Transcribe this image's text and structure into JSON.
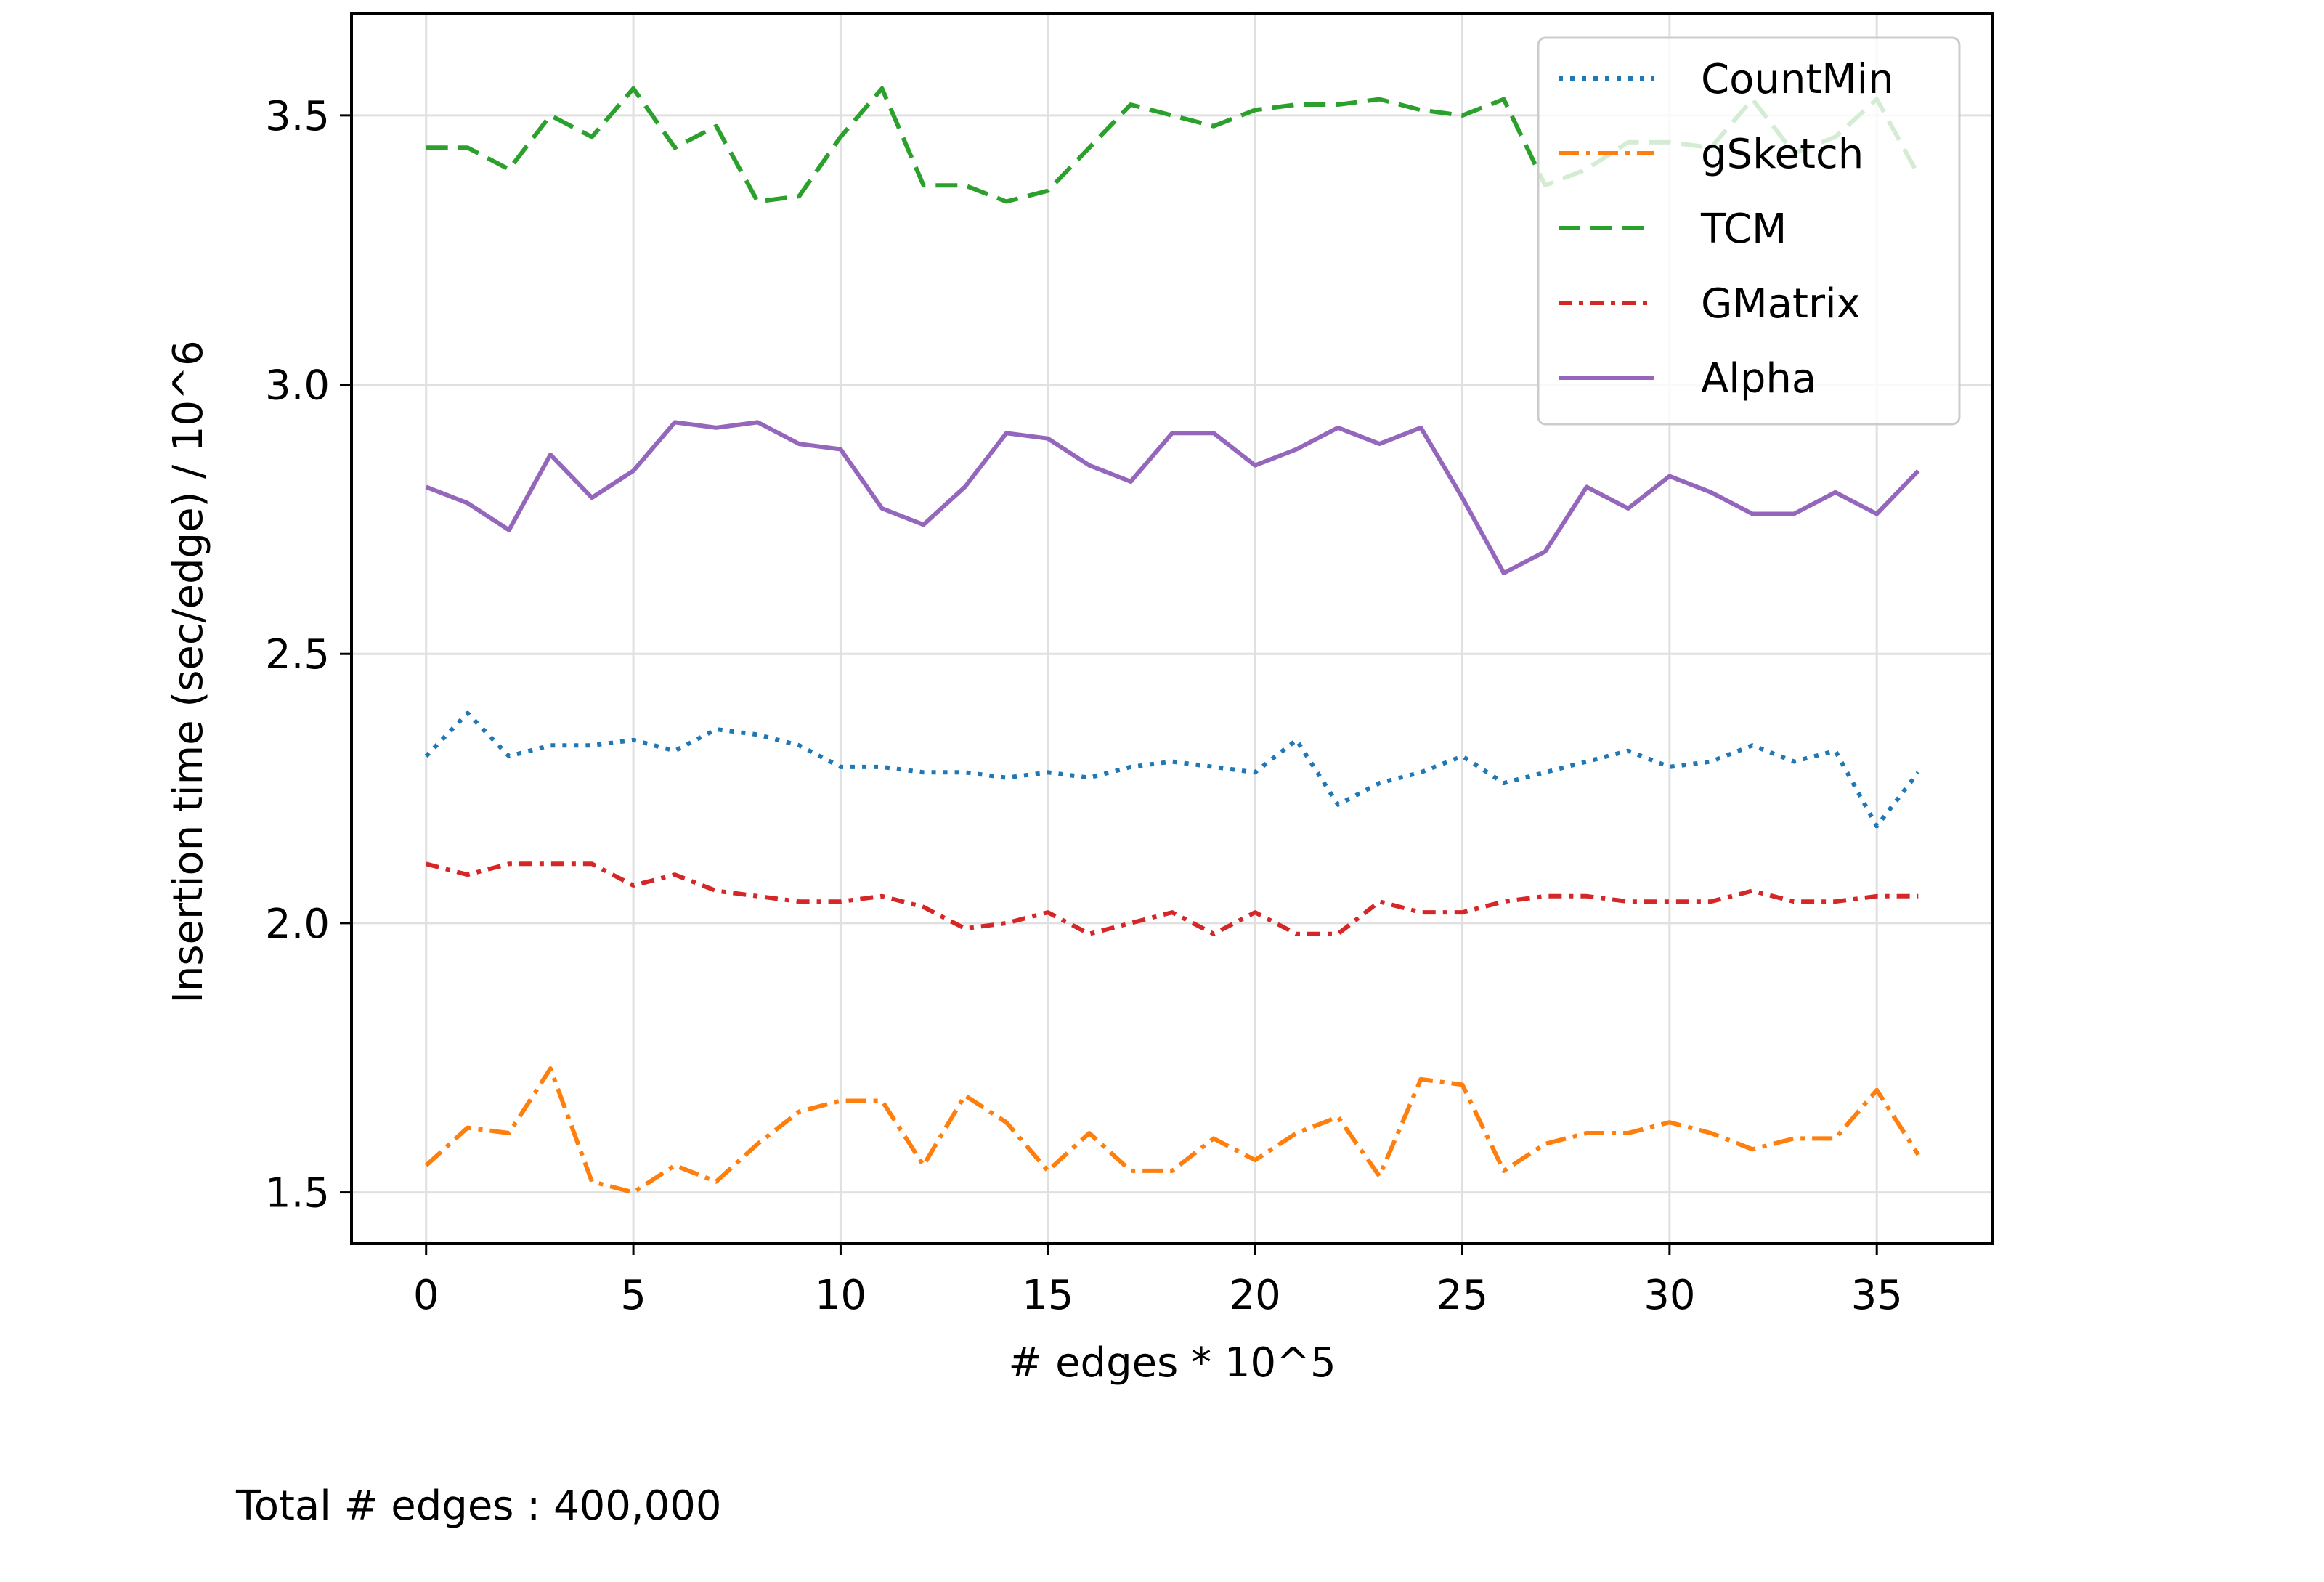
{
  "chart_data": {
    "type": "line",
    "title": "",
    "xlabel": "# edges * 10^5",
    "ylabel": "Insertion time (sec/edge) / 10^6",
    "xlim": [
      -1.8,
      37.8
    ],
    "ylim": [
      1.405,
      3.69
    ],
    "xticks": [
      0,
      5,
      10,
      15,
      20,
      25,
      30,
      35
    ],
    "yticks": [
      1.5,
      2.0,
      2.5,
      3.0,
      3.5
    ],
    "ytick_labels": [
      "1.5",
      "2.0",
      "2.5",
      "3.0",
      "3.5"
    ],
    "grid": true,
    "legend_position": "top-right",
    "x": [
      0,
      1,
      2,
      3,
      4,
      5,
      6,
      7,
      8,
      9,
      10,
      11,
      12,
      13,
      14,
      15,
      16,
      17,
      18,
      19,
      20,
      21,
      22,
      23,
      24,
      25,
      26,
      27,
      28,
      29,
      30,
      31,
      32,
      33,
      34,
      35,
      36
    ],
    "series": [
      {
        "name": "CountMin",
        "color": "#1f77b4",
        "dash": "dotted",
        "values": [
          2.31,
          2.39,
          2.31,
          2.33,
          2.33,
          2.34,
          2.32,
          2.36,
          2.35,
          2.33,
          2.29,
          2.29,
          2.28,
          2.28,
          2.27,
          2.28,
          2.27,
          2.29,
          2.3,
          2.29,
          2.28,
          2.34,
          2.22,
          2.26,
          2.28,
          2.31,
          2.26,
          2.28,
          2.3,
          2.32,
          2.29,
          2.3,
          2.33,
          2.3,
          2.32,
          2.18,
          2.28
        ]
      },
      {
        "name": "gSketch",
        "color": "#ff7f0e",
        "dash": "dashdot",
        "values": [
          1.55,
          1.62,
          1.61,
          1.73,
          1.52,
          1.5,
          1.55,
          1.52,
          1.59,
          1.65,
          1.67,
          1.67,
          1.55,
          1.68,
          1.63,
          1.54,
          1.61,
          1.54,
          1.54,
          1.6,
          1.56,
          1.61,
          1.64,
          1.53,
          1.71,
          1.7,
          1.54,
          1.59,
          1.61,
          1.61,
          1.63,
          1.61,
          1.58,
          1.6,
          1.6,
          1.69,
          1.57
        ]
      },
      {
        "name": "TCM",
        "color": "#2ca02c",
        "dash": "dashed",
        "values": [
          3.44,
          3.44,
          3.4,
          3.5,
          3.46,
          3.55,
          3.44,
          3.48,
          3.34,
          3.35,
          3.46,
          3.55,
          3.37,
          3.37,
          3.34,
          3.36,
          3.44,
          3.52,
          3.5,
          3.48,
          3.51,
          3.52,
          3.52,
          3.53,
          3.51,
          3.5,
          3.53,
          3.37,
          3.4,
          3.45,
          3.45,
          3.44,
          3.53,
          3.43,
          3.46,
          3.53,
          3.39
        ]
      },
      {
        "name": "GMatrix",
        "color": "#d62728",
        "dash": "densedash",
        "values": [
          2.11,
          2.09,
          2.11,
          2.11,
          2.11,
          2.07,
          2.09,
          2.06,
          2.05,
          2.04,
          2.04,
          2.05,
          2.03,
          1.99,
          2.0,
          2.02,
          1.98,
          2.0,
          2.02,
          1.98,
          2.02,
          1.98,
          1.98,
          2.04,
          2.02,
          2.02,
          2.04,
          2.05,
          2.05,
          2.04,
          2.04,
          2.04,
          2.06,
          2.04,
          2.04,
          2.05,
          2.05
        ]
      },
      {
        "name": "Alpha",
        "color": "#9467bd",
        "dash": "solid",
        "values": [
          2.81,
          2.78,
          2.73,
          2.87,
          2.79,
          2.84,
          2.93,
          2.92,
          2.93,
          2.89,
          2.88,
          2.77,
          2.74,
          2.81,
          2.91,
          2.9,
          2.85,
          2.82,
          2.91,
          2.91,
          2.85,
          2.88,
          2.92,
          2.89,
          2.92,
          2.79,
          2.65,
          2.69,
          2.81,
          2.77,
          2.83,
          2.8,
          2.76,
          2.76,
          2.8,
          2.76,
          2.84
        ]
      }
    ],
    "footnote": "Total # edges : 400,000"
  },
  "colors": {
    "grid": "#e0e0e0",
    "frame": "#000000",
    "legend_border": "#cccccc",
    "background": "#ffffff"
  }
}
